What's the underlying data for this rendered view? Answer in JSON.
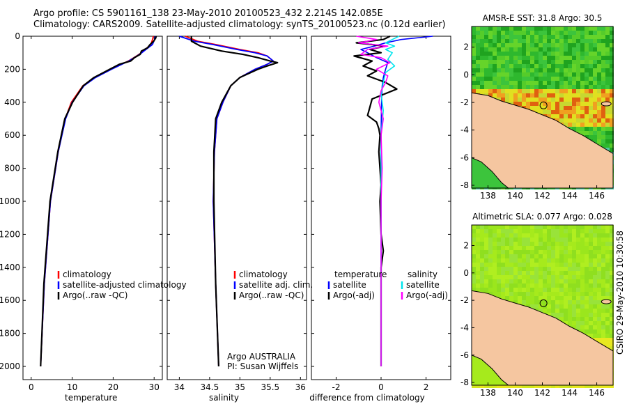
{
  "header": {
    "line1": "Argo profile: CS 5901161_138 23-May-2010 20100523_432 2.214S 142.085E",
    "line2": "Climatology: CARS2009. Satellite-adjusted climatology: synTS_20100523.nc (0.12d earlier)"
  },
  "side_label": "CSIRO 29-May-2010 10:30:58",
  "colors": {
    "climatology": "#ff0000",
    "satellite": "#0000ff",
    "argo": "#000000",
    "sal_satellite": "#00e5ee",
    "sal_argo": "#ff00ff",
    "land": "#f5c6a0",
    "sst_good": "#2db52d",
    "sla_good": "#9be61d"
  },
  "chart_data": [
    {
      "type": "line",
      "id": "temperature",
      "xlabel": "temperature",
      "ylabel": "",
      "xlim": [
        -2,
        32
      ],
      "ylim": [
        0,
        2080
      ],
      "xticks": [
        0,
        10,
        20,
        30
      ],
      "yticks": [
        0,
        200,
        400,
        600,
        800,
        1000,
        1200,
        1400,
        1600,
        1800,
        2000
      ],
      "y_inverted": true,
      "legend": [
        "climatology",
        "satellite-adjusted climatology",
        "Argo(..raw -QC)"
      ],
      "series": [
        {
          "name": "climatology",
          "color": "#ff0000",
          "depth": [
            0,
            20,
            50,
            80,
            100,
            120,
            150,
            200,
            250,
            300,
            400,
            500,
            700,
            1000,
            1500,
            2000
          ],
          "values": [
            29.8,
            29.6,
            29.2,
            27.8,
            26.9,
            25.7,
            23.7,
            19.4,
            15.4,
            12.6,
            9.8,
            8.3,
            6.6,
            4.7,
            3.2,
            2.3
          ]
        },
        {
          "name": "satellite-adjusted climatology",
          "color": "#0000ff",
          "depth": [
            0,
            20,
            50,
            80,
            100,
            120,
            150,
            200,
            250,
            300,
            400,
            500,
            700,
            1000,
            1500,
            2000
          ],
          "values": [
            30.3,
            30.1,
            29.6,
            28.0,
            27.0,
            25.8,
            23.8,
            19.6,
            15.7,
            12.9,
            10.0,
            8.4,
            6.6,
            4.7,
            3.2,
            2.3
          ]
        },
        {
          "name": "Argo(..raw -QC)",
          "color": "#000000",
          "depth": [
            0,
            10,
            30,
            50,
            70,
            90,
            110,
            130,
            150,
            170,
            200,
            250,
            300,
            400,
            500,
            700,
            1000,
            1500,
            2000
          ],
          "values": [
            30.5,
            30.4,
            29.9,
            29.0,
            28.4,
            26.9,
            26.6,
            25.2,
            24.3,
            21.5,
            19.2,
            15.3,
            12.7,
            10.1,
            8.2,
            6.5,
            4.6,
            3.1,
            2.3
          ]
        }
      ]
    },
    {
      "type": "line",
      "id": "salinity",
      "xlabel": "salinity",
      "ylabel": "",
      "xlim": [
        33.8,
        36.1
      ],
      "ylim": [
        0,
        2080
      ],
      "xticks": [
        34,
        34.5,
        35,
        35.5,
        36
      ],
      "y_inverted": true,
      "legend": [
        "climatology",
        "satellite adj. clim.",
        "Argo(..raw -QC)"
      ],
      "annotation": [
        "Argo AUSTRALIA",
        "PI: Susan Wijffels"
      ],
      "series": [
        {
          "name": "climatology",
          "color": "#ff0000",
          "depth": [
            0,
            30,
            50,
            80,
            100,
            120,
            150,
            170,
            200,
            250,
            300,
            400,
            500,
            700,
            1000,
            1500,
            2000
          ],
          "values": [
            34.1,
            34.3,
            34.6,
            35.0,
            35.3,
            35.45,
            35.55,
            35.45,
            35.25,
            35.0,
            34.85,
            34.72,
            34.62,
            34.58,
            34.56,
            34.6,
            34.65
          ]
        },
        {
          "name": "satellite adj. clim.",
          "color": "#0000ff",
          "depth": [
            0,
            30,
            50,
            80,
            100,
            120,
            150,
            170,
            200,
            250,
            300,
            400,
            500,
            700,
            1000,
            1500,
            2000
          ],
          "values": [
            34.0,
            34.25,
            34.55,
            34.95,
            35.25,
            35.45,
            35.55,
            35.45,
            35.25,
            35.0,
            34.85,
            34.72,
            34.62,
            34.58,
            34.56,
            34.6,
            34.65
          ]
        },
        {
          "name": "Argo(..raw -QC)",
          "color": "#000000",
          "depth": [
            0,
            30,
            60,
            90,
            110,
            130,
            150,
            160,
            180,
            200,
            250,
            300,
            400,
            500,
            700,
            1000,
            1500,
            2000
          ],
          "values": [
            34.2,
            34.2,
            34.35,
            34.7,
            35.05,
            35.3,
            35.5,
            35.62,
            35.45,
            35.3,
            35.0,
            34.85,
            34.7,
            34.6,
            34.57,
            34.57,
            34.6,
            34.65
          ]
        }
      ]
    },
    {
      "type": "line",
      "id": "difference",
      "xlabel": "difference from climatology",
      "ylabel": "",
      "xlim": [
        -3.1,
        3.1
      ],
      "ylim": [
        0,
        2080
      ],
      "xticks": [
        -2,
        0,
        2
      ],
      "y_inverted": true,
      "legend_titles": [
        "temperature",
        "salinity"
      ],
      "legend": [
        "satellite",
        "Argo(-adj)",
        "satellite",
        "Argo(-adj)"
      ],
      "series": [
        {
          "name": "temperature satellite",
          "color": "#0000ff",
          "depth": [
            0,
            20,
            40,
            60,
            80,
            100,
            130,
            160,
            200,
            250,
            300,
            400,
            600,
            1000,
            1500,
            2000
          ],
          "values": [
            2.3,
            0.9,
            0.2,
            -0.3,
            -0.9,
            -0.6,
            -0.2,
            0.3,
            0.2,
            0.1,
            0.05,
            0.02,
            0.0,
            0.0,
            0.0,
            0.0
          ]
        },
        {
          "name": "temperature Argo(-adj)",
          "color": "#000000",
          "depth": [
            0,
            20,
            40,
            60,
            80,
            100,
            120,
            150,
            180,
            210,
            240,
            280,
            320,
            380,
            430,
            480,
            520,
            560,
            600,
            700,
            800,
            900,
            1000,
            1200,
            1300,
            1400,
            1600,
            1800,
            2000
          ],
          "values": [
            0.4,
            0.1,
            -1.1,
            0.2,
            -0.5,
            0.0,
            -1.2,
            -0.4,
            -0.8,
            -0.2,
            -0.6,
            0.2,
            0.7,
            -0.4,
            -0.5,
            -0.6,
            -0.2,
            -0.1,
            -0.05,
            -0.1,
            -0.05,
            0.0,
            -0.05,
            0.0,
            0.1,
            0.0,
            0.0,
            0.0,
            0.0
          ]
        },
        {
          "name": "salinity satellite",
          "color": "#00e5ee",
          "depth": [
            0,
            20,
            40,
            60,
            80,
            100,
            140,
            180,
            220,
            280,
            350,
            450,
            600,
            1000,
            1500,
            2000
          ],
          "values": [
            0.8,
            0.5,
            0.2,
            0.6,
            0.2,
            0.5,
            0.3,
            0.6,
            0.2,
            0.1,
            0.0,
            0.1,
            0.0,
            0.0,
            0.0,
            0.0
          ]
        },
        {
          "name": "salinity Argo(-adj)",
          "color": "#ff00ff",
          "depth": [
            0,
            20,
            40,
            60,
            80,
            110,
            130,
            160,
            200,
            240,
            280,
            330,
            400,
            500,
            600,
            800,
            1000,
            1500,
            2000
          ],
          "values": [
            -1.1,
            -0.2,
            -1.0,
            0.3,
            -0.6,
            -0.9,
            0.0,
            0.4,
            -0.2,
            0.3,
            0.2,
            0.0,
            -0.1,
            0.1,
            0.0,
            0.05,
            0.0,
            0.0,
            0.0
          ]
        }
      ]
    },
    {
      "type": "heatmap",
      "id": "sst_map",
      "title": "AMSR-E SST: 31.8 Argo: 30.5",
      "xlim": [
        136.8,
        147.2
      ],
      "ylim": [
        -8.2,
        3.5
      ],
      "xticks": [
        138,
        140,
        142,
        144,
        146
      ],
      "yticks": [
        2,
        0,
        -2,
        -4,
        -6,
        -8
      ],
      "marker": {
        "lon": 142.085,
        "lat": -2.214
      }
    },
    {
      "type": "heatmap",
      "id": "sla_map",
      "title": "Altimetric SLA: 0.077 Argo: 0.028",
      "xlim": [
        136.8,
        147.2
      ],
      "ylim": [
        -8.2,
        3.5
      ],
      "xticks": [
        138,
        140,
        142,
        144,
        146
      ],
      "yticks": [
        2,
        0,
        -2,
        -4,
        -6,
        -8
      ],
      "marker": {
        "lon": 142.085,
        "lat": -2.214
      }
    }
  ]
}
